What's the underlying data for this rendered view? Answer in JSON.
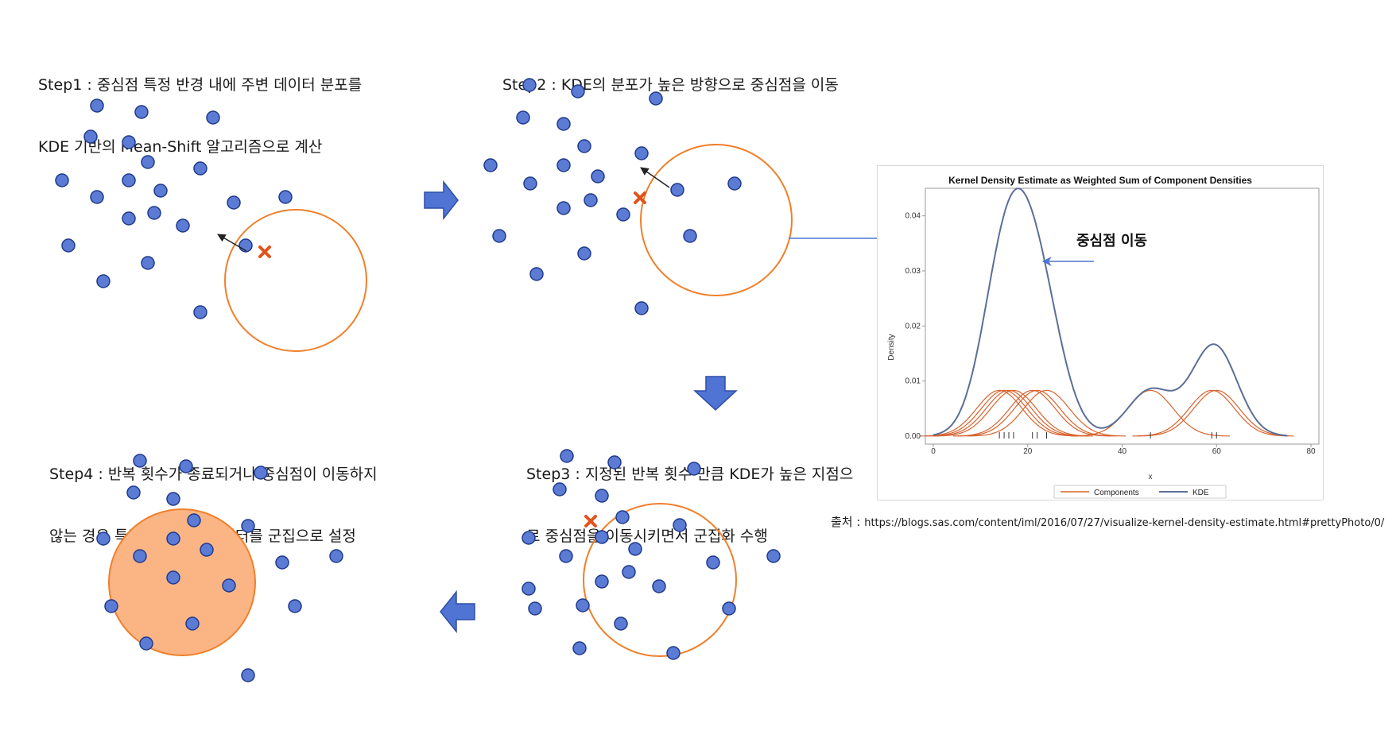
{
  "steps": {
    "step1": {
      "line1": "Step1 : 중심점 특정 반경 내에 주변 데이터 분포를",
      "line2": "KDE 기반의 Mean-Shift 알고리즘으로 계산"
    },
    "step2": {
      "line1": "Step2 : KDE의 분포가 높은 방향으로 중심점을 이동"
    },
    "step3": {
      "line1": "Step3 : 지정된 반복 횟수 만큼 KDE가 높은 지점으",
      "line2": "로 중심점을 이동시키면서 군집화 수행"
    },
    "step4": {
      "line1": "Step4 : 반복 횟수가 종료되거나 중심점이 이동하지",
      "line2": "않는 경우 특정 반경내의 데이터를 군집으로 설정"
    }
  },
  "colors": {
    "point_fill": "#5b7bd5",
    "point_stroke": "#1f3a8a",
    "circle": "#f07f2a",
    "cluster_fill": "#fbb585",
    "center_mark": "#e0531c",
    "arrow_fill": "#4f74d4",
    "kde_line": "#5b6f96",
    "component_line": "#d9632e"
  },
  "annotation": {
    "center_move": "중심점 이동"
  },
  "source": {
    "label": "출처 : ",
    "url": "https://blogs.sas.com/content/iml/2016/07/27/visualize-kernel-density-estimate.html#prettyPhoto/0/"
  },
  "chart_data": {
    "type": "line",
    "title": "Kernel Density Estimate as Weighted Sum of Component Densities",
    "xlabel": "x",
    "ylabel": "Density",
    "xlim": [
      0,
      80
    ],
    "ylim": [
      0,
      0.045
    ],
    "x_ticks": [
      "0",
      "20",
      "40",
      "60",
      "80"
    ],
    "y_ticks": [
      "0.00",
      "0.01",
      "0.02",
      "0.03",
      "0.04"
    ],
    "bandwidth": 4.8,
    "data_points": [
      14,
      15,
      16,
      17,
      21,
      22,
      24,
      46,
      59,
      60
    ],
    "series": [
      {
        "name": "Components",
        "style": "component"
      },
      {
        "name": "KDE",
        "style": "kde"
      }
    ],
    "legend": "bottom",
    "grid": false
  }
}
